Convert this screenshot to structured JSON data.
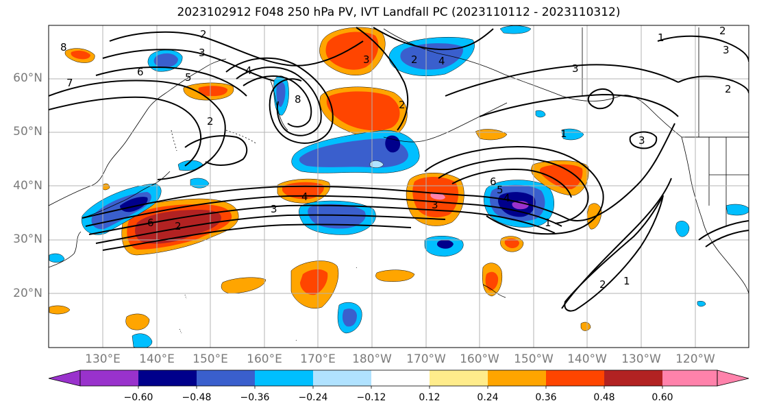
{
  "title": "2023102912 F048 250 hPa PV, IVT Landfall PC (2023110112 - 2023110312)",
  "lat_labels": [
    "60°N",
    "50°N",
    "40°N",
    "30°N",
    "20°N"
  ],
  "lon_labels": [
    "130°E",
    "140°E",
    "150°E",
    "160°E",
    "170°E",
    "180°W",
    "170°W",
    "160°W",
    "150°W",
    "140°W",
    "130°W",
    "120°W"
  ],
  "contour_labels": [
    "8",
    "7",
    "6",
    "5",
    "4",
    "3",
    "2",
    "2",
    "4",
    "6",
    "8",
    "2",
    "3",
    "2",
    "3",
    "4",
    "3",
    "2",
    "1",
    "6",
    "5",
    "4",
    "3",
    "2",
    "1",
    "1",
    "2",
    "1",
    "3",
    "2",
    "3"
  ],
  "colorbar": {
    "ticks": [
      "−0.60",
      "−0.48",
      "−0.36",
      "−0.24",
      "−0.12",
      "0.12",
      "0.24",
      "0.36",
      "0.48",
      "0.60"
    ],
    "colors": [
      "#9932cc",
      "#00008b",
      "#3a5fcd",
      "#00bfff",
      "#b0e2ff",
      "#ffffff",
      "#ffec8b",
      "#ffa500",
      "#ff4500",
      "#b22222",
      "#ff82ab"
    ]
  }
}
